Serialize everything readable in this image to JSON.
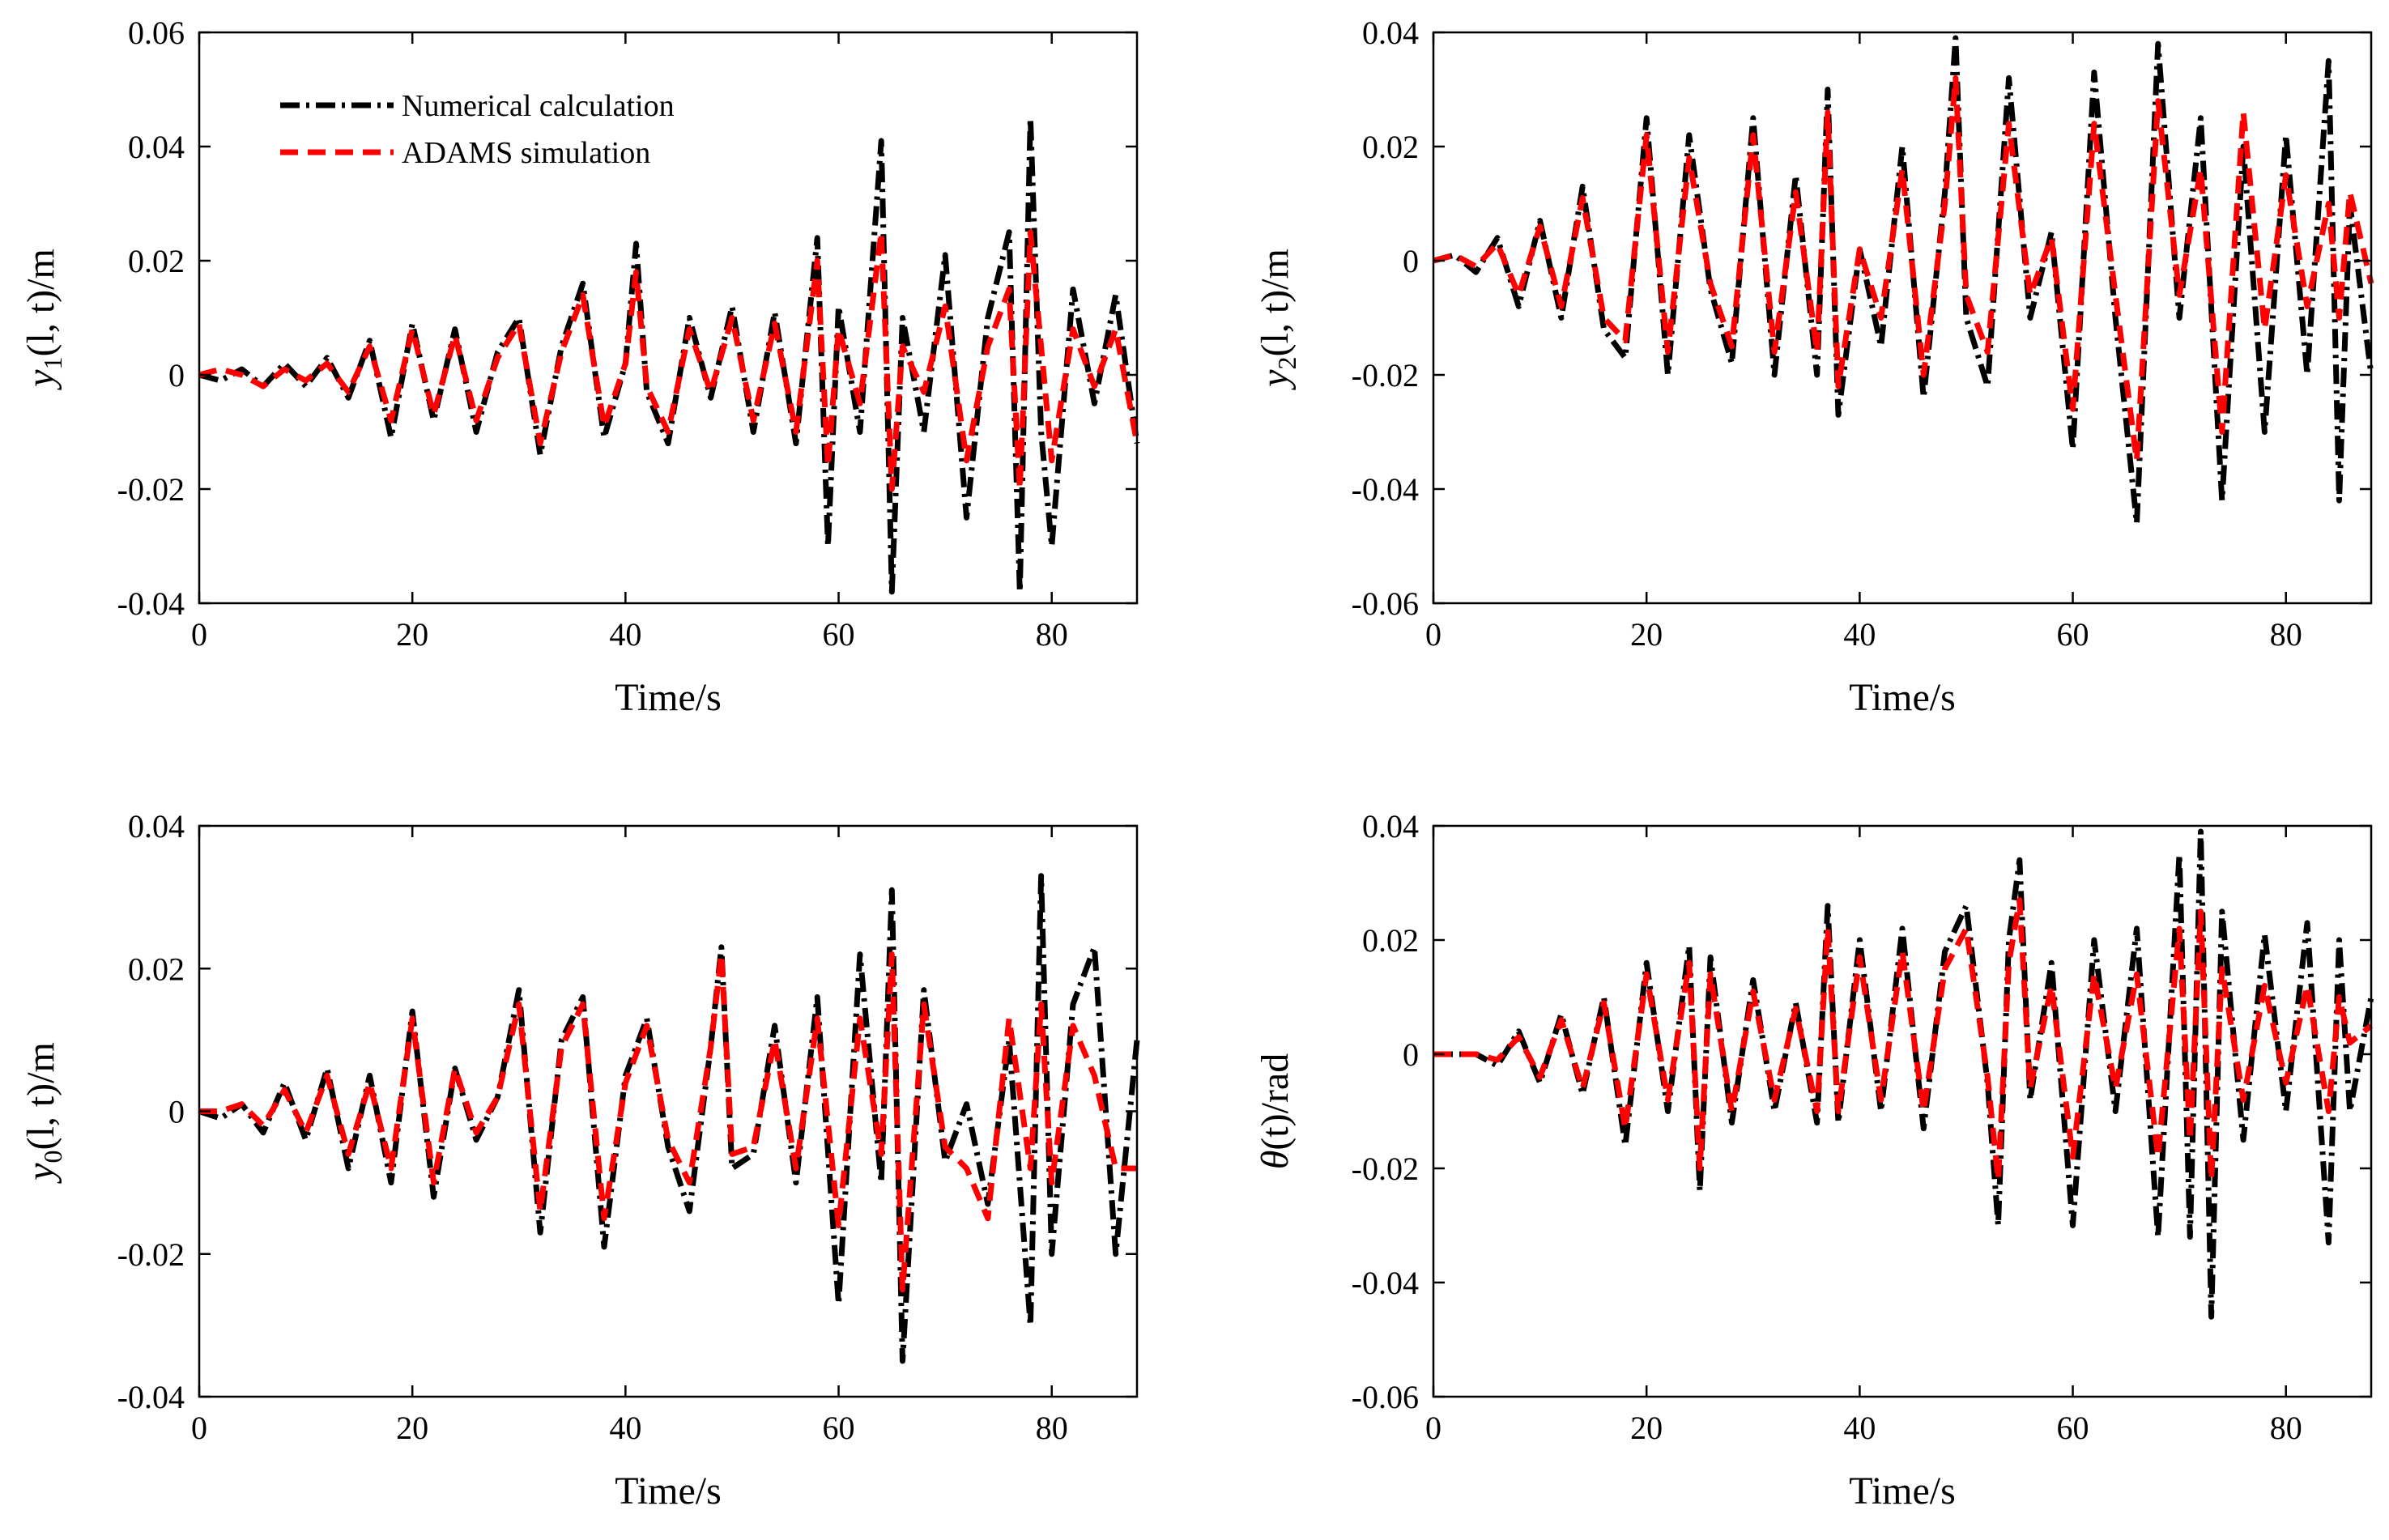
{
  "chart_data": [
    {
      "type": "line",
      "xlabel": "Time/s",
      "ylabel_main": "y",
      "ylabel_sub": "1",
      "ylabel_rest": "(l, t)/m",
      "xlim": [
        0,
        88
      ],
      "ylim": [
        -0.04,
        0.06
      ],
      "xticks": [
        "0",
        "20",
        "40",
        "60",
        "80"
      ],
      "xtick_values": [
        0,
        20,
        40,
        60,
        80
      ],
      "yticks": [
        "-0.04",
        "-0.02",
        "0",
        "0.02",
        "0.04",
        "0.06"
      ],
      "ytick_values": [
        -0.04,
        -0.02,
        0,
        0.02,
        0.04,
        0.06
      ],
      "legend": {
        "placement": "top-left",
        "entries": [
          "Numerical calculation",
          "ADAMS simulation"
        ]
      },
      "series": [
        {
          "name": "Numerical calculation",
          "color": "#000000",
          "x": [
            0,
            2,
            4,
            6,
            8,
            10,
            12,
            14,
            16,
            18,
            20,
            22,
            24,
            26,
            28,
            30,
            32,
            34,
            36,
            38,
            40,
            41,
            42,
            44,
            46,
            48,
            50,
            52,
            54,
            56,
            58,
            59,
            60,
            62,
            64,
            65,
            66,
            68,
            70,
            72,
            74,
            76,
            77,
            78,
            79,
            80,
            82,
            84,
            86,
            88
          ],
          "y": [
            0,
            -0.001,
            0.001,
            -0.002,
            0.002,
            -0.002,
            0.003,
            -0.004,
            0.006,
            -0.011,
            0.009,
            -0.008,
            0.008,
            -0.01,
            0.004,
            0.01,
            -0.014,
            0.005,
            0.016,
            -0.011,
            0.002,
            0.023,
            -0.003,
            -0.012,
            0.01,
            -0.004,
            0.012,
            -0.01,
            0.011,
            -0.012,
            0.024,
            -0.03,
            0.012,
            -0.01,
            0.041,
            -0.038,
            0.01,
            -0.01,
            0.021,
            -0.025,
            0.01,
            0.025,
            -0.038,
            0.045,
            -0.01,
            -0.03,
            0.015,
            -0.005,
            0.014,
            -0.012
          ]
        },
        {
          "name": "ADAMS simulation",
          "color": "#ff0000",
          "x": [
            0,
            2,
            4,
            6,
            8,
            10,
            12,
            14,
            16,
            18,
            20,
            22,
            24,
            26,
            28,
            30,
            32,
            34,
            36,
            38,
            40,
            41,
            42,
            44,
            46,
            48,
            50,
            52,
            54,
            56,
            58,
            59,
            60,
            62,
            64,
            65,
            66,
            68,
            70,
            72,
            74,
            76,
            77,
            78,
            79,
            80,
            82,
            84,
            86,
            88
          ],
          "y": [
            0,
            0.001,
            0,
            -0.002,
            0.001,
            -0.001,
            0.002,
            -0.003,
            0.005,
            -0.008,
            0.008,
            -0.007,
            0.007,
            -0.008,
            0.003,
            0.009,
            -0.012,
            0.004,
            0.014,
            -0.009,
            0.002,
            0.018,
            -0.002,
            -0.01,
            0.008,
            -0.003,
            0.01,
            -0.008,
            0.009,
            -0.01,
            0.02,
            -0.016,
            0.008,
            -0.005,
            0.025,
            -0.02,
            0.005,
            -0.003,
            0.012,
            -0.015,
            0.005,
            0.015,
            -0.02,
            0.025,
            0.005,
            -0.015,
            0.008,
            -0.002,
            0.008,
            -0.012
          ]
        }
      ]
    },
    {
      "type": "line",
      "xlabel": "Time/s",
      "ylabel_main": "y",
      "ylabel_sub": "2",
      "ylabel_rest": "(l, t)/m",
      "xlim": [
        0,
        88
      ],
      "ylim": [
        -0.06,
        0.04
      ],
      "xticks": [
        "0",
        "20",
        "40",
        "60",
        "80"
      ],
      "xtick_values": [
        0,
        20,
        40,
        60,
        80
      ],
      "yticks": [
        "-0.06",
        "-0.04",
        "-0.02",
        "0",
        "0.02",
        "0.04"
      ],
      "ytick_values": [
        -0.06,
        -0.04,
        -0.02,
        0,
        0.02,
        0.04
      ],
      "series": [
        {
          "name": "Numerical calculation",
          "color": "#000000",
          "x": [
            0,
            2,
            4,
            6,
            8,
            10,
            12,
            14,
            16,
            18,
            20,
            22,
            24,
            26,
            28,
            30,
            32,
            34,
            36,
            37,
            38,
            40,
            42,
            44,
            46,
            48,
            49,
            50,
            52,
            54,
            56,
            58,
            60,
            62,
            64,
            66,
            68,
            70,
            72,
            74,
            76,
            78,
            80,
            82,
            84,
            85,
            86,
            88
          ],
          "y": [
            0,
            0.001,
            -0.002,
            0.004,
            -0.008,
            0.007,
            -0.01,
            0.013,
            -0.012,
            -0.017,
            0.025,
            -0.02,
            0.022,
            -0.005,
            -0.018,
            0.025,
            -0.02,
            0.015,
            -0.02,
            0.03,
            -0.027,
            0.002,
            -0.015,
            0.02,
            -0.024,
            0.012,
            0.039,
            -0.01,
            -0.022,
            0.032,
            -0.01,
            0.005,
            -0.033,
            0.033,
            -0.01,
            -0.046,
            0.038,
            -0.01,
            0.025,
            -0.042,
            0.02,
            -0.03,
            0.022,
            -0.02,
            0.035,
            -0.042,
            0.01,
            -0.02
          ]
        },
        {
          "name": "ADAMS simulation",
          "color": "#ff0000",
          "x": [
            0,
            2,
            4,
            6,
            8,
            10,
            12,
            14,
            16,
            18,
            20,
            22,
            24,
            26,
            28,
            30,
            32,
            34,
            36,
            37,
            38,
            40,
            42,
            44,
            46,
            48,
            49,
            50,
            52,
            54,
            56,
            58,
            60,
            62,
            64,
            66,
            68,
            70,
            72,
            74,
            76,
            78,
            80,
            82,
            84,
            85,
            86,
            88
          ],
          "y": [
            0,
            0.001,
            -0.001,
            0.003,
            -0.006,
            0.006,
            -0.008,
            0.011,
            -0.01,
            -0.014,
            0.022,
            -0.016,
            0.018,
            -0.004,
            -0.015,
            0.022,
            -0.016,
            0.012,
            -0.016,
            0.026,
            -0.022,
            0.002,
            -0.01,
            0.016,
            -0.02,
            0.01,
            0.032,
            -0.006,
            -0.016,
            0.024,
            -0.006,
            0.004,
            -0.026,
            0.024,
            -0.006,
            -0.035,
            0.028,
            -0.006,
            0.016,
            -0.03,
            0.026,
            -0.012,
            0.015,
            -0.008,
            0.01,
            -0.01,
            0.012,
            -0.004
          ]
        }
      ]
    },
    {
      "type": "line",
      "xlabel": "Time/s",
      "ylabel_main": "y",
      "ylabel_sub": "0",
      "ylabel_rest": "(l, t)/m",
      "xlim": [
        0,
        88
      ],
      "ylim": [
        -0.04,
        0.04
      ],
      "xticks": [
        "0",
        "20",
        "40",
        "60",
        "80"
      ],
      "xtick_values": [
        0,
        20,
        40,
        60,
        80
      ],
      "yticks": [
        "-0.04",
        "-0.02",
        "0",
        "0.02",
        "0.04"
      ],
      "ytick_values": [
        -0.04,
        -0.02,
        0,
        0.02,
        0.04
      ],
      "series": [
        {
          "name": "Numerical calculation",
          "color": "#000000",
          "x": [
            0,
            2,
            4,
            6,
            8,
            10,
            12,
            14,
            16,
            18,
            20,
            22,
            24,
            26,
            28,
            30,
            32,
            34,
            36,
            38,
            40,
            42,
            44,
            46,
            48,
            49,
            50,
            52,
            54,
            56,
            58,
            60,
            62,
            64,
            65,
            66,
            68,
            70,
            72,
            74,
            76,
            78,
            79,
            80,
            82,
            84,
            86,
            88
          ],
          "y": [
            0,
            -0.001,
            0.001,
            -0.003,
            0.004,
            -0.004,
            0.006,
            -0.008,
            0.005,
            -0.01,
            0.014,
            -0.012,
            0.006,
            -0.004,
            0.002,
            0.017,
            -0.017,
            0.01,
            0.016,
            -0.019,
            0.005,
            0.013,
            -0.005,
            -0.014,
            0.009,
            0.023,
            -0.008,
            -0.006,
            0.012,
            -0.01,
            0.016,
            -0.027,
            0.022,
            -0.01,
            0.031,
            -0.035,
            0.017,
            -0.007,
            0.001,
            -0.013,
            0.01,
            -0.03,
            0.033,
            -0.02,
            0.015,
            0.023,
            -0.02,
            0.01
          ]
        },
        {
          "name": "ADAMS simulation",
          "color": "#ff0000",
          "x": [
            0,
            2,
            4,
            6,
            8,
            10,
            12,
            14,
            16,
            18,
            20,
            22,
            24,
            26,
            28,
            30,
            32,
            34,
            36,
            38,
            40,
            42,
            44,
            46,
            48,
            49,
            50,
            52,
            54,
            56,
            58,
            60,
            62,
            64,
            65,
            66,
            68,
            70,
            72,
            74,
            76,
            78,
            79,
            80,
            82,
            84,
            86,
            88
          ],
          "y": [
            0,
            0,
            0.001,
            -0.002,
            0.003,
            -0.003,
            0.005,
            -0.006,
            0.004,
            -0.008,
            0.013,
            -0.01,
            0.006,
            -0.003,
            0.002,
            0.015,
            -0.014,
            0.009,
            0.015,
            -0.015,
            0.004,
            0.012,
            -0.004,
            -0.01,
            0.009,
            0.022,
            -0.006,
            -0.005,
            0.01,
            -0.008,
            0.013,
            -0.016,
            0.013,
            -0.006,
            0.022,
            -0.025,
            0.015,
            -0.005,
            -0.008,
            -0.015,
            0.013,
            -0.008,
            0.015,
            -0.01,
            0.012,
            0.005,
            -0.008,
            -0.008
          ]
        }
      ]
    },
    {
      "type": "line",
      "xlabel": "Time/s",
      "ylabel_main": "θ",
      "ylabel_sub": "",
      "ylabel_rest": "(t)/rad",
      "xlim": [
        0,
        88
      ],
      "ylim": [
        -0.06,
        0.04
      ],
      "xticks": [
        "0",
        "20",
        "40",
        "60",
        "80"
      ],
      "xtick_values": [
        0,
        20,
        40,
        60,
        80
      ],
      "yticks": [
        "-0.06",
        "-0.04",
        "-0.02",
        "0",
        "0.02",
        "0.04"
      ],
      "ytick_values": [
        -0.06,
        -0.04,
        -0.02,
        0,
        0.02,
        0.04
      ],
      "series": [
        {
          "name": "Numerical calculation",
          "color": "#000000",
          "x": [
            0,
            2,
            4,
            6,
            8,
            10,
            12,
            14,
            16,
            18,
            20,
            22,
            24,
            25,
            26,
            28,
            30,
            32,
            34,
            36,
            37,
            38,
            40,
            42,
            44,
            46,
            48,
            50,
            52,
            53,
            54,
            55,
            56,
            58,
            60,
            62,
            64,
            66,
            68,
            70,
            71,
            72,
            73,
            74,
            76,
            78,
            80,
            82,
            84,
            85,
            86,
            88
          ],
          "y": [
            0,
            0,
            0,
            -0.002,
            0.004,
            -0.005,
            0.007,
            -0.007,
            0.01,
            -0.016,
            0.016,
            -0.01,
            0.019,
            -0.024,
            0.017,
            -0.012,
            0.013,
            -0.01,
            0.009,
            -0.012,
            0.026,
            -0.012,
            0.02,
            -0.01,
            0.022,
            -0.013,
            0.018,
            0.026,
            -0.005,
            -0.03,
            0.02,
            0.034,
            -0.008,
            0.016,
            -0.03,
            0.02,
            -0.01,
            0.022,
            -0.032,
            0.035,
            -0.032,
            0.039,
            -0.046,
            0.025,
            -0.015,
            0.021,
            -0.01,
            0.023,
            -0.033,
            0.02,
            -0.01,
            0.01
          ]
        },
        {
          "name": "ADAMS simulation",
          "color": "#ff0000",
          "x": [
            0,
            2,
            4,
            6,
            8,
            10,
            12,
            14,
            16,
            18,
            20,
            22,
            24,
            25,
            26,
            28,
            30,
            32,
            34,
            36,
            37,
            38,
            40,
            42,
            44,
            46,
            48,
            50,
            52,
            53,
            54,
            55,
            56,
            58,
            60,
            62,
            64,
            66,
            68,
            70,
            71,
            72,
            73,
            74,
            76,
            78,
            80,
            82,
            84,
            85,
            86,
            88
          ],
          "y": [
            0,
            0,
            0,
            -0.001,
            0.003,
            -0.004,
            0.006,
            -0.006,
            0.009,
            -0.013,
            0.014,
            -0.008,
            0.016,
            -0.02,
            0.014,
            -0.01,
            0.011,
            -0.008,
            0.008,
            -0.01,
            0.022,
            -0.01,
            0.017,
            -0.008,
            0.018,
            -0.01,
            0.015,
            0.022,
            -0.004,
            -0.022,
            0.016,
            0.027,
            -0.006,
            0.012,
            -0.018,
            0.014,
            -0.006,
            0.014,
            -0.018,
            0.022,
            -0.015,
            0.025,
            -0.022,
            0.015,
            -0.008,
            0.012,
            -0.005,
            0.012,
            -0.01,
            0.01,
            0.002,
            0.005
          ]
        }
      ]
    }
  ]
}
